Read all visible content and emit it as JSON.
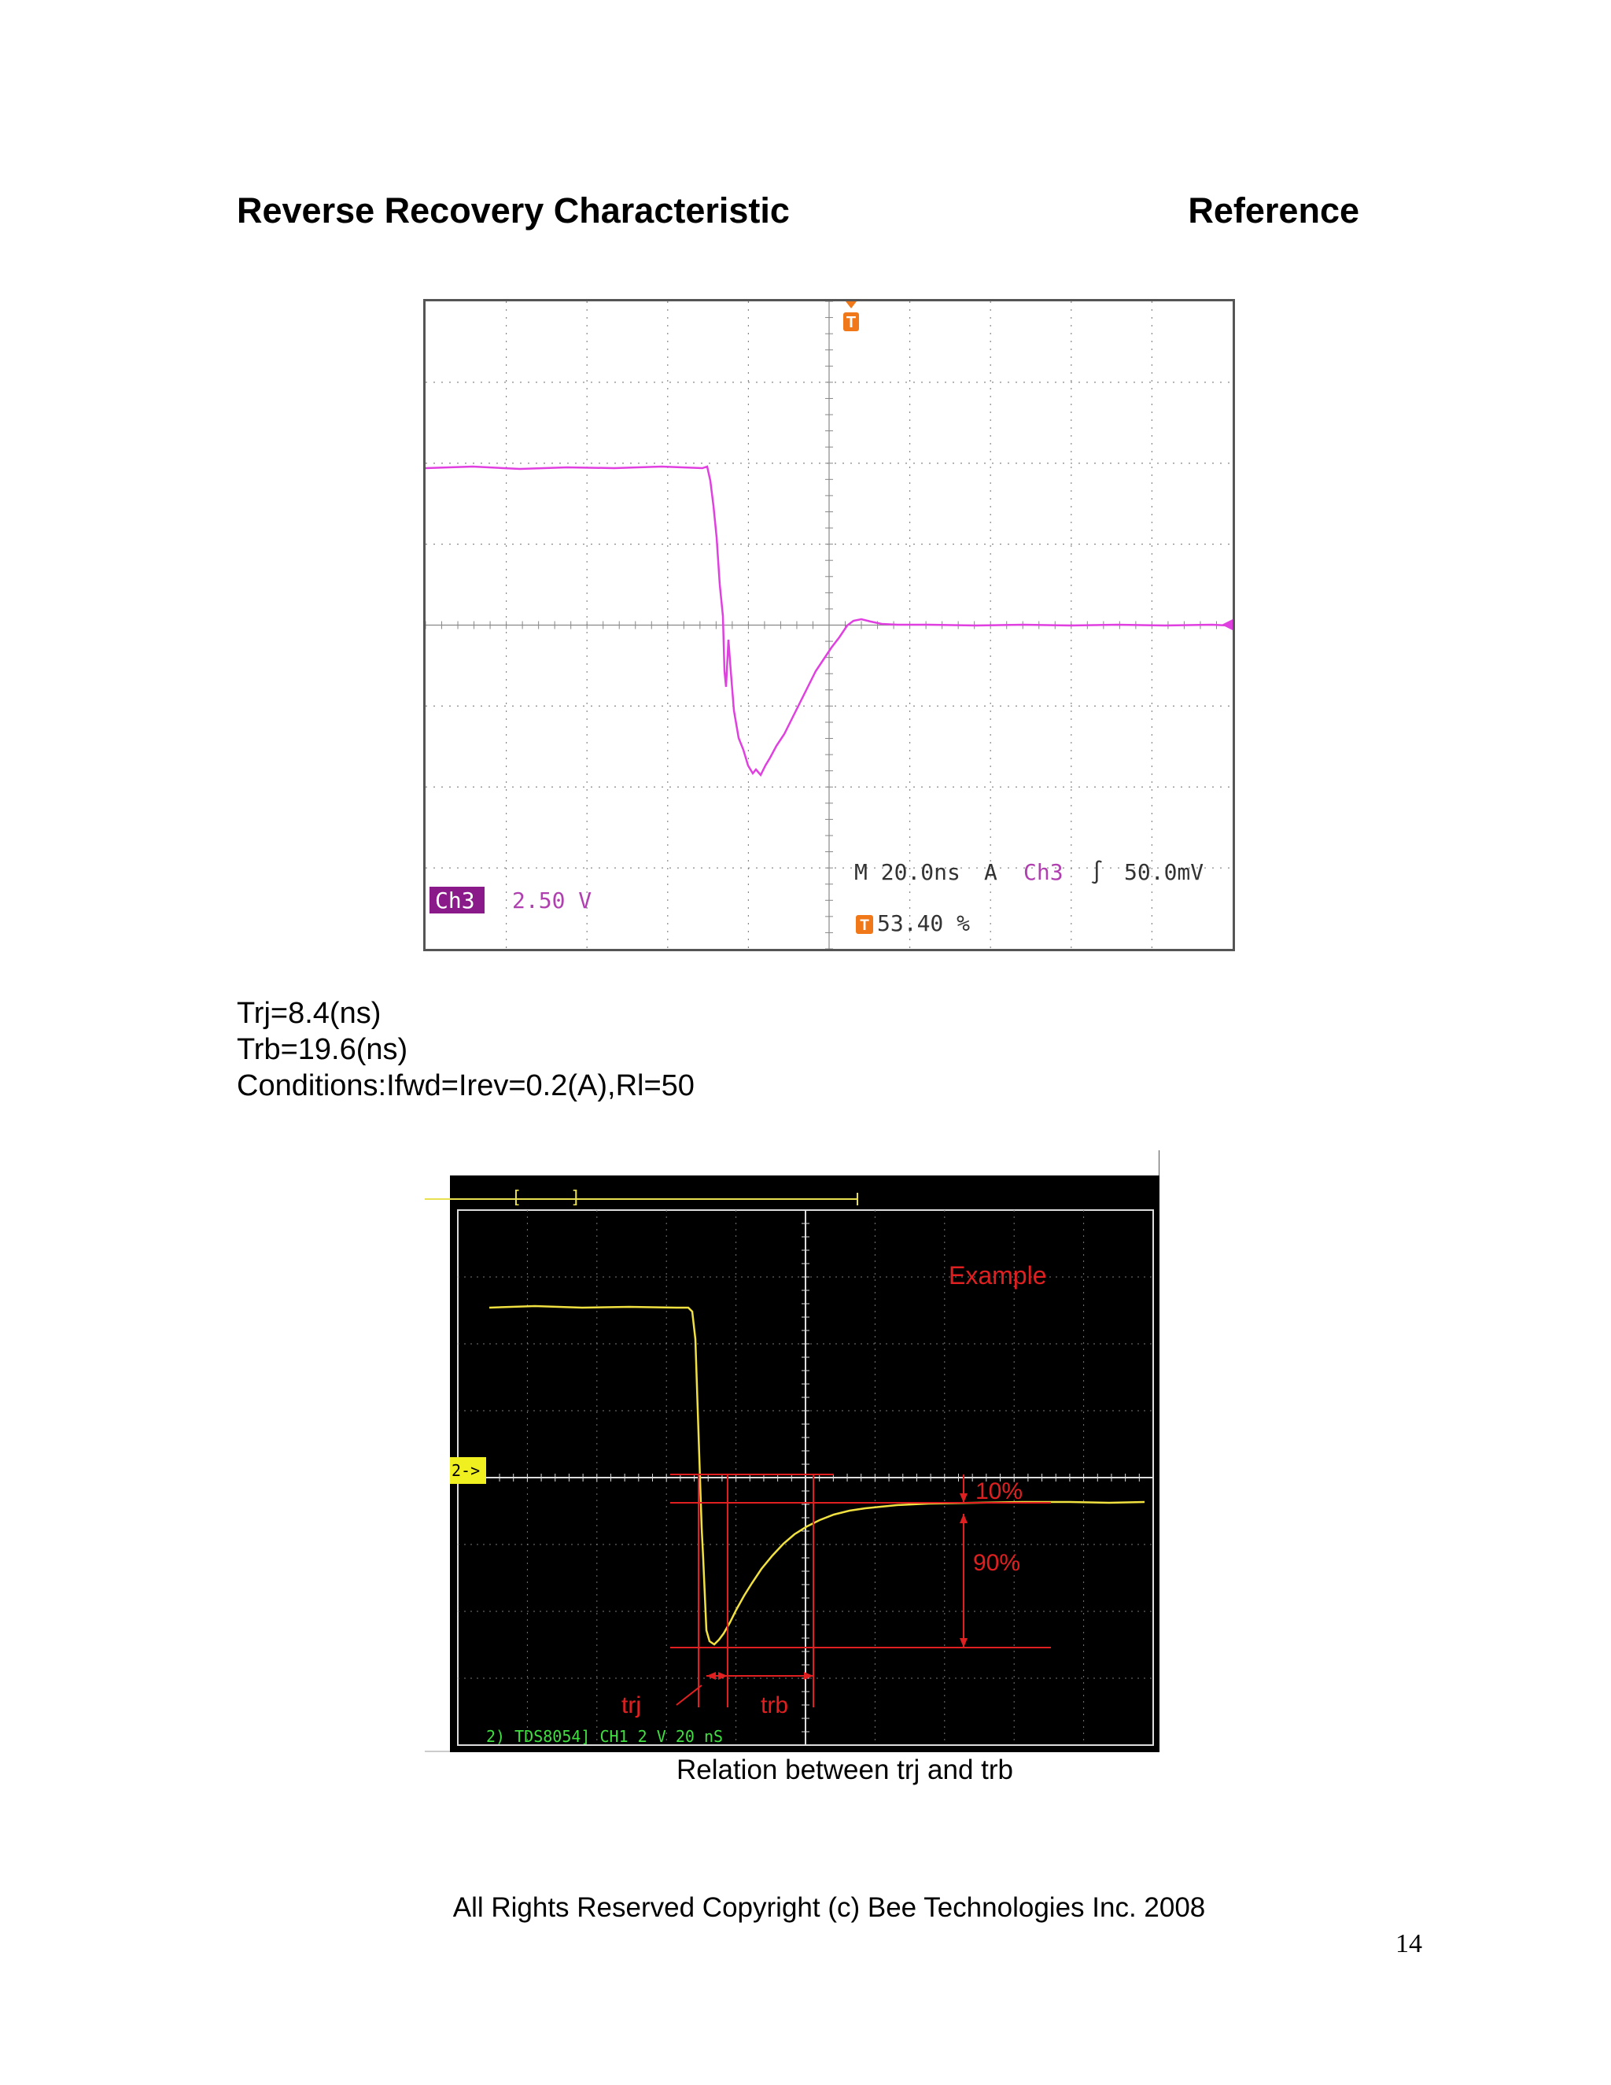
{
  "header": {
    "title": "Reverse Recovery Characteristic",
    "reference": "Reference"
  },
  "scope1": {
    "trigger_marker": "T",
    "timebase": "M 20.0ns",
    "trigger_mode": "A",
    "trigger_channel": "Ch3",
    "trigger_symbol": "∫",
    "trigger_level": "50.0mV",
    "channel_badge": "Ch3",
    "channel_scale": "2.50 V",
    "trigger_position": "53.40 %",
    "trace_color": "#e040e0"
  },
  "measurements": {
    "trj": "Trj=8.4(ns)",
    "trb": "Trb=19.6(ns)",
    "conditions": "Conditions:Ifwd=Irev=0.2(A),Rl=50"
  },
  "scope2": {
    "example_label": "Example",
    "pct10": "10%",
    "pct90": "90%",
    "trj_label": "trj",
    "trb_label": "trb",
    "ground_marker": "2->",
    "status": "2) TDS8054] CH1 2 V  20 nS",
    "trace_color": "#f0e040",
    "annotation_color": "#e02020"
  },
  "caption": "Relation between trj and trb",
  "footer": {
    "copyright": "All Rights Reserved Copyright (c) Bee Technologies Inc. 2008",
    "page_number": "14"
  }
}
